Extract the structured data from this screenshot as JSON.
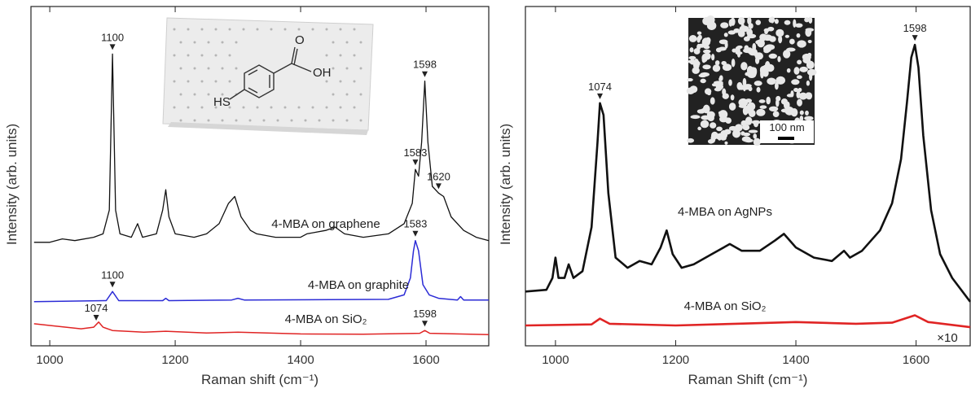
{
  "chart_data": [
    {
      "type": "line",
      "xlabel": "Raman shift (cm⁻¹)",
      "ylabel": "Intensity (arb. units)",
      "xlim": [
        970,
        1700
      ],
      "xticks": [
        1000,
        1200,
        1400,
        1600
      ],
      "ylim": [
        0,
        100
      ],
      "inset_labels": [
        "HS",
        "O",
        "OH"
      ],
      "series": [
        {
          "name": "4-MBA on graphene",
          "color": "#111111",
          "x": [
            975,
            1000,
            1020,
            1040,
            1070,
            1085,
            1095,
            1100,
            1105,
            1112,
            1130,
            1140,
            1148,
            1170,
            1180,
            1185,
            1190,
            1200,
            1230,
            1250,
            1270,
            1285,
            1295,
            1305,
            1320,
            1330,
            1360,
            1400,
            1410,
            1440,
            1455,
            1470,
            1500,
            1540,
            1565,
            1578,
            1583,
            1588,
            1593,
            1598,
            1603,
            1610,
            1620,
            1628,
            1640,
            1660,
            1680,
            1700
          ],
          "values": [
            30.5,
            30.5,
            31.5,
            31,
            32,
            33,
            40,
            86,
            40,
            33,
            32,
            36,
            32,
            33,
            40,
            46,
            38,
            33,
            32,
            33,
            36,
            42,
            44,
            38,
            34,
            33,
            32,
            32,
            33,
            34,
            35,
            33,
            32,
            33,
            36,
            42,
            52,
            50,
            60,
            78,
            60,
            47,
            45,
            44,
            38,
            34,
            32,
            31
          ],
          "peaks": [
            1100,
            1583,
            1598,
            1620
          ]
        },
        {
          "name": "4-MBA on graphite",
          "color": "#2b2bd6",
          "x": [
            975,
            1090,
            1100,
            1110,
            1180,
            1185,
            1190,
            1290,
            1300,
            1310,
            1540,
            1565,
            1575,
            1580,
            1583,
            1588,
            1595,
            1605,
            1620,
            1650,
            1655,
            1660,
            1700
          ],
          "values": [
            13,
            13.3,
            16,
            13.3,
            13.3,
            14,
            13.3,
            13.5,
            14,
            13.5,
            13.7,
            15,
            20,
            28,
            31,
            28,
            18,
            15,
            14,
            13.5,
            14.5,
            13.5,
            13.5
          ],
          "peaks": [
            1100,
            1583
          ]
        },
        {
          "name": "4-MBA on SiO₂",
          "color": "#e02424",
          "x": [
            975,
            1000,
            1050,
            1070,
            1078,
            1085,
            1100,
            1150,
            1185,
            1250,
            1300,
            1400,
            1500,
            1590,
            1598,
            1606,
            1700
          ],
          "values": [
            6.5,
            6,
            5,
            5.5,
            7,
            5.5,
            4.5,
            4,
            4.3,
            3.8,
            4,
            3.5,
            3.4,
            3.7,
            4.5,
            3.7,
            3.3
          ],
          "peaks": [
            1074,
            1598
          ]
        }
      ]
    },
    {
      "type": "line",
      "xlabel": "Raman Shift (cm⁻¹)",
      "ylabel": "Intensity (arb. units)",
      "xlim": [
        950,
        1690
      ],
      "xticks": [
        1000,
        1200,
        1400,
        1600
      ],
      "ylim": [
        0,
        100
      ],
      "inset_labels": [
        "100 nm"
      ],
      "scale_note": "×10",
      "series": [
        {
          "name": "4-MBA on AgNPs",
          "color": "#111111",
          "x": [
            950,
            985,
            995,
            1000,
            1005,
            1015,
            1022,
            1030,
            1045,
            1060,
            1070,
            1074,
            1080,
            1088,
            1100,
            1120,
            1140,
            1160,
            1175,
            1185,
            1195,
            1210,
            1230,
            1260,
            1290,
            1310,
            1340,
            1365,
            1380,
            1400,
            1430,
            1460,
            1480,
            1490,
            1510,
            1540,
            1560,
            1575,
            1585,
            1592,
            1598,
            1604,
            1612,
            1625,
            1640,
            1660,
            1690
          ],
          "values": [
            16,
            16.5,
            20,
            26,
            20,
            20,
            24,
            20,
            22,
            35,
            60,
            71.5,
            68,
            45,
            26,
            23,
            25,
            24,
            29,
            34,
            27,
            23,
            24,
            27,
            30,
            28,
            28,
            31,
            33,
            29,
            26,
            25,
            28,
            26,
            28,
            34,
            42,
            55,
            72,
            85,
            88.7,
            82,
            62,
            40,
            27,
            20,
            13
          ],
          "peaks": [
            1074,
            1598
          ]
        },
        {
          "name": "4-MBA on SiO₂",
          "color": "#e02424",
          "x": [
            950,
            1060,
            1074,
            1090,
            1200,
            1300,
            1400,
            1500,
            1560,
            1598,
            1620,
            1690
          ],
          "values": [
            6,
            6.3,
            8,
            6.5,
            6,
            6.5,
            7,
            6.5,
            6.8,
            9,
            7,
            5.5
          ],
          "peaks": []
        }
      ]
    }
  ]
}
